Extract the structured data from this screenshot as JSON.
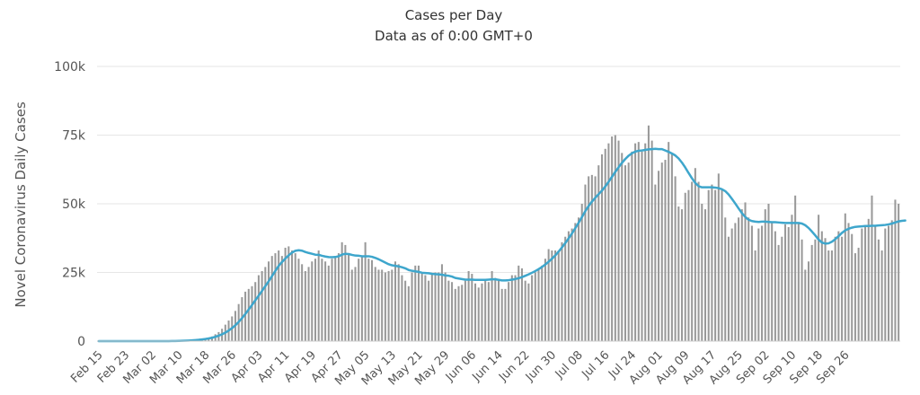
{
  "chart_data": {
    "type": "bar",
    "title": "Cases per Day",
    "subtitle": "Data as of 0:00 GMT+0",
    "ylabel": "Novel Coronavirus Daily Cases",
    "xlabel": "",
    "ylim": [
      0,
      100000
    ],
    "yticks": [
      0,
      25000,
      50000,
      75000,
      100000
    ],
    "ytick_labels": [
      "0",
      "25k",
      "50k",
      "75k",
      "100k"
    ],
    "x_start_label": "Feb 15",
    "x_tick_every_days": 8,
    "xtick_labels": [
      "Feb 15",
      "Feb 23",
      "Mar 02",
      "Mar 10",
      "Mar 18",
      "Mar 26",
      "Apr 03",
      "Apr 11",
      "Apr 19",
      "Apr 27",
      "May 05",
      "May 13",
      "May 21",
      "May 29",
      "Jun 06",
      "Jun 14",
      "Jun 22",
      "Jun 30",
      "Jul 08",
      "Jul 16",
      "Jul 24",
      "Aug 01",
      "Aug 09",
      "Aug 17",
      "Aug 25",
      "Sep 02",
      "Sep 10",
      "Sep 18",
      "Sep 26"
    ],
    "grid": true,
    "colors": {
      "bars": "#999999",
      "average": "#3ea6cc",
      "grid": "#e6e6e6"
    },
    "series": [
      {
        "name": "Daily Cases",
        "type": "bar",
        "values": [
          0,
          0,
          0,
          0,
          0,
          0,
          0,
          0,
          0,
          0,
          0,
          0,
          0,
          0,
          0,
          0,
          0,
          0,
          0,
          0,
          0,
          0,
          100,
          100,
          100,
          200,
          200,
          300,
          400,
          500,
          600,
          800,
          1000,
          1300,
          1700,
          2500,
          3300,
          4500,
          6000,
          7500,
          9000,
          11000,
          13500,
          16000,
          18000,
          19000,
          20000,
          21500,
          24000,
          25500,
          27000,
          29000,
          31000,
          32000,
          33000,
          31000,
          34000,
          34500,
          33000,
          32000,
          30000,
          28000,
          25500,
          27000,
          29000,
          30000,
          33000,
          30000,
          29000,
          27500,
          30000,
          31000,
          32000,
          36000,
          35000,
          32000,
          26000,
          27000,
          30000,
          31000,
          36000,
          30000,
          29500,
          27000,
          26000,
          26000,
          25000,
          25500,
          26000,
          29000,
          28000,
          24000,
          22000,
          20000,
          25000,
          27500,
          27500,
          24500,
          24000,
          22000,
          24500,
          25000,
          25000,
          28000,
          25000,
          22000,
          21500,
          19000,
          20000,
          20500,
          22000,
          25500,
          24500,
          21000,
          19500,
          21000,
          22500,
          21500,
          25500,
          23000,
          22000,
          19000,
          19000,
          21500,
          24000,
          24000,
          27500,
          26500,
          22000,
          21000,
          24000,
          25000,
          26500,
          27500,
          30000,
          33500,
          33000,
          33000,
          33000,
          36000,
          38000,
          40000,
          41000,
          43000,
          45000,
          50000,
          57000,
          60000,
          60500,
          60000,
          64000,
          68000,
          70000,
          72000,
          74500,
          75000,
          73000,
          68500,
          64000,
          65000,
          69000,
          72000,
          72500,
          69000,
          72000,
          78500,
          73000,
          57000,
          62000,
          65000,
          66000,
          72500,
          68000,
          60000,
          49000,
          48000,
          54000,
          55000,
          58000,
          63000,
          58000,
          50000,
          48000,
          55000,
          57000,
          55000,
          61000,
          55000,
          45000,
          38000,
          41000,
          43000,
          45000,
          48000,
          50500,
          45000,
          42000,
          33000,
          41000,
          42000,
          48000,
          50000,
          43000,
          40000,
          35000,
          38000,
          42500,
          41500,
          46000,
          53000,
          43000,
          37000,
          26000,
          29000,
          35000,
          37000,
          46000,
          40000,
          37500,
          33000,
          33000,
          38000,
          40000,
          38000,
          46500,
          43000,
          39000,
          32000,
          34000,
          41000,
          41500,
          44500,
          53000,
          42000,
          37000,
          33000,
          41000,
          42000,
          44000,
          51500,
          50000
        ]
      },
      {
        "name": "7-day Moving Average",
        "type": "line",
        "values": [
          0,
          0,
          0,
          0,
          0,
          0,
          0,
          0,
          0,
          0,
          0,
          0,
          0,
          0,
          0,
          0,
          0,
          0,
          0,
          0,
          0,
          0,
          30,
          50,
          80,
          110,
          160,
          220,
          290,
          380,
          480,
          620,
          780,
          980,
          1230,
          1560,
          1970,
          2480,
          3100,
          3850,
          4730,
          5780,
          6990,
          8370,
          9890,
          11500,
          13160,
          14860,
          16570,
          18280,
          20020,
          21800,
          23660,
          25540,
          27400,
          28810,
          30070,
          31230,
          32220,
          32880,
          33090,
          32930,
          32460,
          32100,
          31790,
          31470,
          31430,
          31070,
          30800,
          30600,
          30560,
          30620,
          30900,
          31500,
          31800,
          31700,
          31400,
          31150,
          31100,
          30900,
          30900,
          30900,
          30700,
          30300,
          29800,
          29200,
          28600,
          28000,
          27600,
          27400,
          27200,
          26900,
          26500,
          25900,
          25600,
          25400,
          25200,
          24900,
          24800,
          24700,
          24500,
          24400,
          24300,
          24200,
          23900,
          23800,
          23500,
          23000,
          22800,
          22600,
          22400,
          22400,
          22400,
          22300,
          22300,
          22300,
          22300,
          22400,
          22500,
          22500,
          22300,
          22100,
          22100,
          22200,
          22400,
          22600,
          22900,
          23300,
          23800,
          24300,
          24900,
          25500,
          26200,
          27000,
          27900,
          28900,
          30000,
          31200,
          32600,
          34100,
          35700,
          37400,
          39200,
          41100,
          43100,
          45200,
          47300,
          49200,
          50800,
          52200,
          53500,
          54800,
          56300,
          58000,
          59800,
          61600,
          63300,
          64900,
          66300,
          67500,
          68400,
          69000,
          69300,
          69400,
          69600,
          69800,
          69900,
          70000,
          69900,
          69900,
          69400,
          68900,
          68300,
          67600,
          66500,
          65000,
          63200,
          61200,
          59300,
          57600,
          56400,
          56000,
          56000,
          56000,
          56000,
          55900,
          55700,
          55300,
          54600,
          53400,
          51800,
          50100,
          48300,
          46600,
          45200,
          44200,
          43700,
          43500,
          43400,
          43500,
          43500,
          43400,
          43300,
          43300,
          43200,
          43100,
          43000,
          43000,
          43000,
          43000,
          43000,
          42800,
          42200,
          41200,
          39900,
          38500,
          37000,
          35900,
          35500,
          35600,
          36200,
          37100,
          38200,
          39400,
          40300,
          40900,
          41300,
          41600,
          41700,
          41800,
          41900,
          41900,
          42000,
          42000,
          42100,
          42200,
          42300,
          42500,
          42800,
          43200,
          43600,
          43800,
          43900
        ]
      }
    ]
  }
}
